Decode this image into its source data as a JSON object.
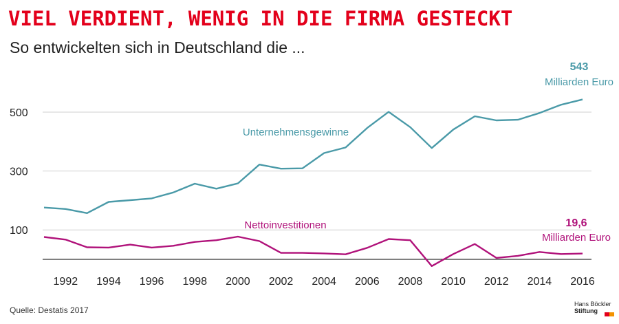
{
  "title": "VIEL VERDIENT, WENIG IN DIE FIRMA GESTECKT",
  "subtitle": "So entwickelten sich in Deutschland die ...",
  "source": "Quelle: Destatis 2017",
  "logo": {
    "line1": "Hans Böckler",
    "line2": "Stiftung"
  },
  "colors": {
    "title": "#e3001b",
    "gewinne": "#4a9aa8",
    "invest": "#b0127a"
  },
  "chart_data": {
    "type": "line",
    "title": "VIEL VERDIENT, WENIG IN DIE FIRMA GESTECKT",
    "subtitle": "So entwickelten sich in Deutschland die ...",
    "x": [
      1991,
      1992,
      1993,
      1994,
      1995,
      1996,
      1997,
      1998,
      1999,
      2000,
      2001,
      2002,
      2003,
      2004,
      2005,
      2006,
      2007,
      2008,
      2009,
      2010,
      2011,
      2012,
      2013,
      2014,
      2015,
      2016
    ],
    "xticks": [
      "1992",
      "1994",
      "1996",
      "1998",
      "2000",
      "2002",
      "2004",
      "2006",
      "2008",
      "2010",
      "2012",
      "2014",
      "2016"
    ],
    "yticks": [
      "500",
      "300",
      "100"
    ],
    "ylim": [
      0,
      600
    ],
    "grid": true,
    "series": [
      {
        "name": "Unternehmensgewinne",
        "values": [
          176,
          171,
          157,
          195,
          201,
          207,
          227,
          257,
          240,
          258,
          322,
          308,
          309,
          361,
          380,
          446,
          501,
          449,
          378,
          441,
          486,
          472,
          474,
          497,
          525,
          543
        ]
      },
      {
        "name": "Nettoinvestitionen",
        "values": [
          76,
          67,
          41,
          40,
          50,
          40,
          46,
          59,
          65,
          77,
          62,
          22,
          22,
          20,
          17,
          39,
          69,
          65,
          -23,
          18,
          52,
          5,
          12,
          25,
          18,
          19.6
        ]
      }
    ],
    "annotations": [
      {
        "value_label": "543",
        "unit_label": "Milliarden Euro",
        "series": 0
      },
      {
        "value_label": "19,6",
        "unit_label": "Milliarden Euro",
        "series": 1
      }
    ]
  }
}
